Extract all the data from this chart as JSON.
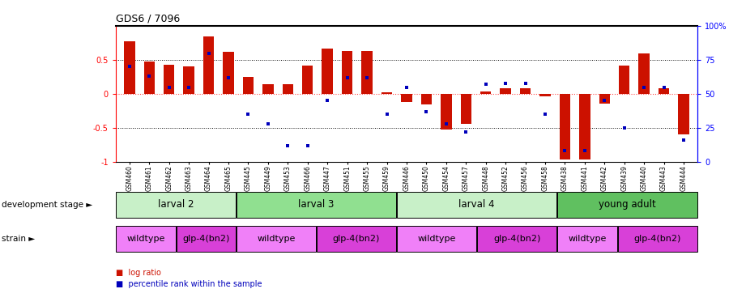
{
  "title": "GDS6 / 7096",
  "samples": [
    "GSM460",
    "GSM461",
    "GSM462",
    "GSM463",
    "GSM464",
    "GSM465",
    "GSM445",
    "GSM449",
    "GSM453",
    "GSM466",
    "GSM447",
    "GSM451",
    "GSM455",
    "GSM459",
    "GSM446",
    "GSM450",
    "GSM454",
    "GSM457",
    "GSM448",
    "GSM452",
    "GSM456",
    "GSM458",
    "GSM438",
    "GSM441",
    "GSM442",
    "GSM439",
    "GSM440",
    "GSM443",
    "GSM444"
  ],
  "log_ratio": [
    0.78,
    0.48,
    0.43,
    0.4,
    0.85,
    0.62,
    0.25,
    0.14,
    0.14,
    0.42,
    0.67,
    0.63,
    0.63,
    0.03,
    -0.12,
    -0.16,
    -0.53,
    -0.44,
    0.04,
    0.08,
    0.08,
    -0.04,
    -0.97,
    -0.97,
    -0.14,
    0.42,
    0.6,
    0.08,
    -0.6
  ],
  "percentile": [
    70,
    63,
    55,
    55,
    80,
    62,
    35,
    28,
    12,
    12,
    45,
    62,
    62,
    35,
    55,
    37,
    28,
    22,
    57,
    58,
    58,
    35,
    8,
    8,
    45,
    25,
    55,
    55,
    16
  ],
  "development_stages": [
    {
      "label": "larval 2",
      "start": 0,
      "end": 6,
      "color": "#c8f0c8"
    },
    {
      "label": "larval 3",
      "start": 6,
      "end": 14,
      "color": "#90e090"
    },
    {
      "label": "larval 4",
      "start": 14,
      "end": 22,
      "color": "#c8f0c8"
    },
    {
      "label": "young adult",
      "start": 22,
      "end": 29,
      "color": "#60c060"
    }
  ],
  "strains": [
    {
      "label": "wildtype",
      "start": 0,
      "end": 3,
      "color": "#f080f8"
    },
    {
      "label": "glp-4(bn2)",
      "start": 3,
      "end": 6,
      "color": "#d840d8"
    },
    {
      "label": "wildtype",
      "start": 6,
      "end": 10,
      "color": "#f080f8"
    },
    {
      "label": "glp-4(bn2)",
      "start": 10,
      "end": 14,
      "color": "#d840d8"
    },
    {
      "label": "wildtype",
      "start": 14,
      "end": 18,
      "color": "#f080f8"
    },
    {
      "label": "glp-4(bn2)",
      "start": 18,
      "end": 22,
      "color": "#d840d8"
    },
    {
      "label": "wildtype",
      "start": 22,
      "end": 25,
      "color": "#f080f8"
    },
    {
      "label": "glp-4(bn2)",
      "start": 25,
      "end": 29,
      "color": "#d840d8"
    }
  ],
  "bar_color": "#cc1100",
  "dot_color": "#0000bb",
  "ylim": [
    -1.0,
    1.0
  ],
  "yticks_left": [
    -1.0,
    -0.5,
    0.0,
    0.5
  ],
  "yticks_right": [
    0,
    25,
    50,
    75,
    100
  ],
  "zero_line_color": "#ff4444",
  "development_label": "development stage",
  "strain_label": "strain",
  "legend_items": [
    {
      "label": "log ratio",
      "color": "#cc1100"
    },
    {
      "label": "percentile rank within the sample",
      "color": "#0000bb"
    }
  ]
}
